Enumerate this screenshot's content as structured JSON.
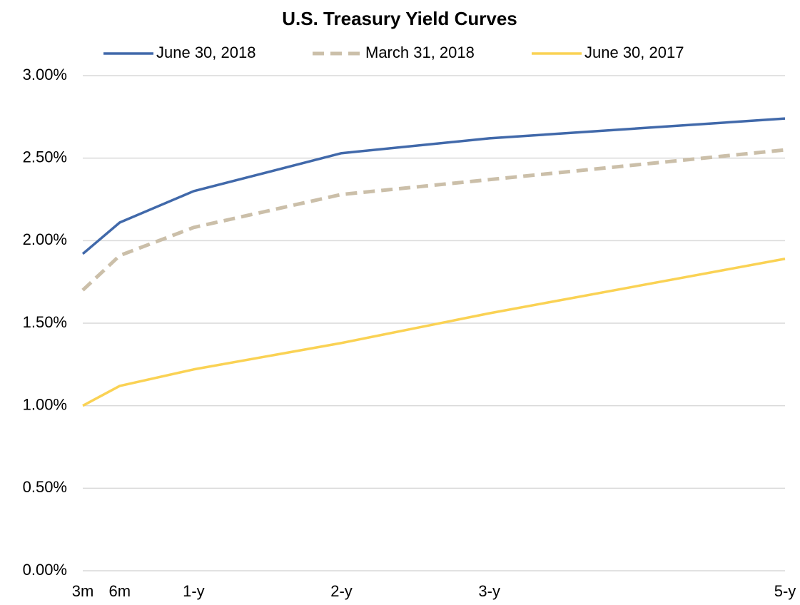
{
  "chart_data": {
    "type": "line",
    "title": "U.S. Treasury Yield Curves",
    "x": [
      0.25,
      0.5,
      1,
      2,
      3,
      5
    ],
    "xlim": [
      0.25,
      5
    ],
    "xticks": [
      {
        "value": 0.25,
        "label": "3m"
      },
      {
        "value": 0.5,
        "label": "6m"
      },
      {
        "value": 1,
        "label": "1-y"
      },
      {
        "value": 2,
        "label": "2-y"
      },
      {
        "value": 3,
        "label": "3-y"
      },
      {
        "value": 5,
        "label": "5-y"
      }
    ],
    "ylim": [
      0,
      3
    ],
    "yticks": [
      {
        "value": 0,
        "label": "0.00%"
      },
      {
        "value": 0.5,
        "label": "0.50%"
      },
      {
        "value": 1,
        "label": "1.00%"
      },
      {
        "value": 1.5,
        "label": "1.50%"
      },
      {
        "value": 2,
        "label": "2.00%"
      },
      {
        "value": 2.5,
        "label": "2.50%"
      },
      {
        "value": 3,
        "label": "3.00%"
      }
    ],
    "grid": true,
    "legend": "top",
    "series": [
      {
        "name": "June 30, 2018",
        "color": "#4169aa",
        "dash": false,
        "values": [
          1.92,
          2.11,
          2.3,
          2.53,
          2.62,
          2.74
        ]
      },
      {
        "name": "March 31, 2018",
        "color": "#cbbfa9",
        "dash": true,
        "values": [
          1.7,
          1.91,
          2.08,
          2.28,
          2.37,
          2.55
        ]
      },
      {
        "name": "June 30, 2017",
        "color": "#fad254",
        "dash": false,
        "values": [
          1.0,
          1.12,
          1.22,
          1.38,
          1.56,
          1.89
        ]
      }
    ]
  }
}
